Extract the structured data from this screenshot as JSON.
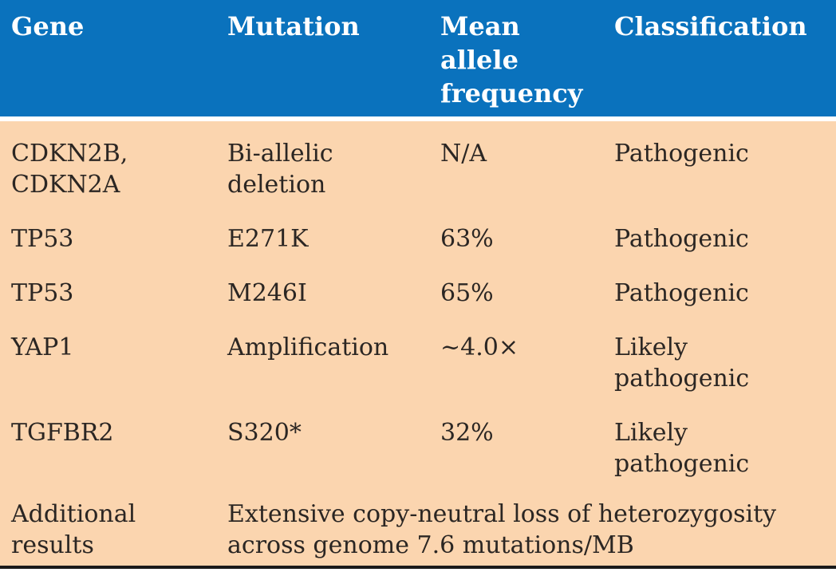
{
  "colors": {
    "header_bg": "#0a72bd",
    "header_text": "#ffffff",
    "body_bg": "#fbd5af",
    "body_text": "#2b2623",
    "bottom_rule": "#1a1a1a"
  },
  "table": {
    "columns": [
      {
        "label": "Gene"
      },
      {
        "label": "Mutation"
      },
      {
        "label": "Mean\nallele\nfrequency"
      },
      {
        "label": "Classification"
      }
    ],
    "rows": [
      {
        "gene": "CDKN2B,\nCDKN2A",
        "mutation": "Bi-allelic\ndeletion",
        "mean_allele_frequency": "N/A",
        "classification": "Pathogenic"
      },
      {
        "gene": "TP53",
        "mutation": "E271K",
        "mean_allele_frequency": "63%",
        "classification": "Pathogenic"
      },
      {
        "gene": "TP53",
        "mutation": "M246I",
        "mean_allele_frequency": "65%",
        "classification": "Pathogenic"
      },
      {
        "gene": "YAP1",
        "mutation": "Amplification",
        "mean_allele_frequency": "~4.0×",
        "classification": "Likely\npathogenic"
      },
      {
        "gene": "TGFBR2",
        "mutation": "S320*",
        "mean_allele_frequency": "32%",
        "classification": "Likely\npathogenic"
      }
    ],
    "footer": {
      "label": "Additional\nresults",
      "value": "Extensive copy-neutral loss of heterozygosity\nacross genome 7.6 mutations/MB"
    }
  },
  "chart_data": {
    "type": "table",
    "columns": [
      "Gene",
      "Mutation",
      "Mean allele frequency",
      "Classification"
    ],
    "rows": [
      [
        "CDKN2B, CDKN2A",
        "Bi-allelic deletion",
        "N/A",
        "Pathogenic"
      ],
      [
        "TP53",
        "E271K",
        "63%",
        "Pathogenic"
      ],
      [
        "TP53",
        "M246I",
        "65%",
        "Pathogenic"
      ],
      [
        "YAP1",
        "Amplification",
        "~4.0×",
        "Likely pathogenic"
      ],
      [
        "TGFBR2",
        "S320*",
        "32%",
        "Likely pathogenic"
      ],
      [
        "Additional results",
        "Extensive copy-neutral loss of heterozygosity across genome 7.6 mutations/MB",
        "",
        ""
      ]
    ]
  }
}
